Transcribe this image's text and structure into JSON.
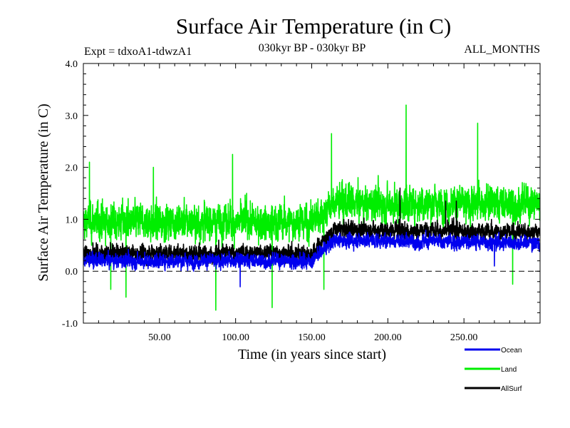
{
  "chart_data": {
    "type": "line",
    "title": "Surface Air Temperature (in C)",
    "subtitle_left": "Expt = tdxoA1-tdwzA1",
    "subtitle_center": "030kyr BP - 030kyr BP",
    "subtitle_right": "ALL_MONTHS",
    "xlabel": "Time (in years since start)",
    "ylabel": "Surface Air Temperature (in C)",
    "xlim": [
      0,
      300
    ],
    "ylim": [
      -1.0,
      4.0
    ],
    "x_ticks": [
      {
        "value": 50,
        "label": "50.00"
      },
      {
        "value": 100,
        "label": "100.00"
      },
      {
        "value": 150,
        "label": "150.00"
      },
      {
        "value": 200,
        "label": "200.00"
      },
      {
        "value": 250,
        "label": "250.00"
      }
    ],
    "y_ticks": [
      {
        "value": -1.0,
        "label": "-1.0"
      },
      {
        "value": 0.0,
        "label": "0.0"
      },
      {
        "value": 1.0,
        "label": "1.0"
      },
      {
        "value": 2.0,
        "label": "2.0"
      },
      {
        "value": 3.0,
        "label": "3.0"
      },
      {
        "value": 4.0,
        "label": "4.0"
      }
    ],
    "zero_line": 0.0,
    "samples_per_year": 12,
    "series": [
      {
        "name": "Land",
        "color": "#00ee00",
        "trend_x": [
          0,
          150,
          165,
          300
        ],
        "trend_y": [
          0.95,
          0.95,
          1.3,
          1.3
        ],
        "noise_amplitude": 0.42,
        "peaks": [
          {
            "x": 4,
            "y": 2.1
          },
          {
            "x": 46,
            "y": 2.0
          },
          {
            "x": 98,
            "y": 2.25
          },
          {
            "x": 163,
            "y": 2.65
          },
          {
            "x": 212,
            "y": 3.2
          },
          {
            "x": 259,
            "y": 2.85
          }
        ],
        "troughs": [
          {
            "x": 18,
            "y": -0.35
          },
          {
            "x": 28,
            "y": -0.5
          },
          {
            "x": 87,
            "y": -0.75
          },
          {
            "x": 124,
            "y": -0.7
          },
          {
            "x": 158,
            "y": -0.35
          },
          {
            "x": 282,
            "y": -0.25
          }
        ]
      },
      {
        "name": "AllSurf",
        "color": "#000000",
        "trend_x": [
          0,
          150,
          165,
          300
        ],
        "trend_y": [
          0.35,
          0.35,
          0.8,
          0.75
        ],
        "noise_amplitude": 0.2,
        "peaks": [
          {
            "x": 208,
            "y": 1.6
          },
          {
            "x": 238,
            "y": 1.35
          },
          {
            "x": 245,
            "y": 1.35
          }
        ],
        "troughs": []
      },
      {
        "name": "Ocean",
        "color": "#0000ee",
        "trend_x": [
          0,
          150,
          165,
          300
        ],
        "trend_y": [
          0.2,
          0.2,
          0.6,
          0.55
        ],
        "noise_amplitude": 0.17,
        "peaks": [],
        "troughs": [
          {
            "x": 103,
            "y": -0.3
          },
          {
            "x": 270,
            "y": 0.1
          }
        ]
      }
    ],
    "legend": [
      {
        "name": "Ocean",
        "color": "#0000ee"
      },
      {
        "name": "Land",
        "color": "#00ee00"
      },
      {
        "name": "AllSurf",
        "color": "#000000"
      }
    ],
    "legend_placement": "bottom-right"
  }
}
